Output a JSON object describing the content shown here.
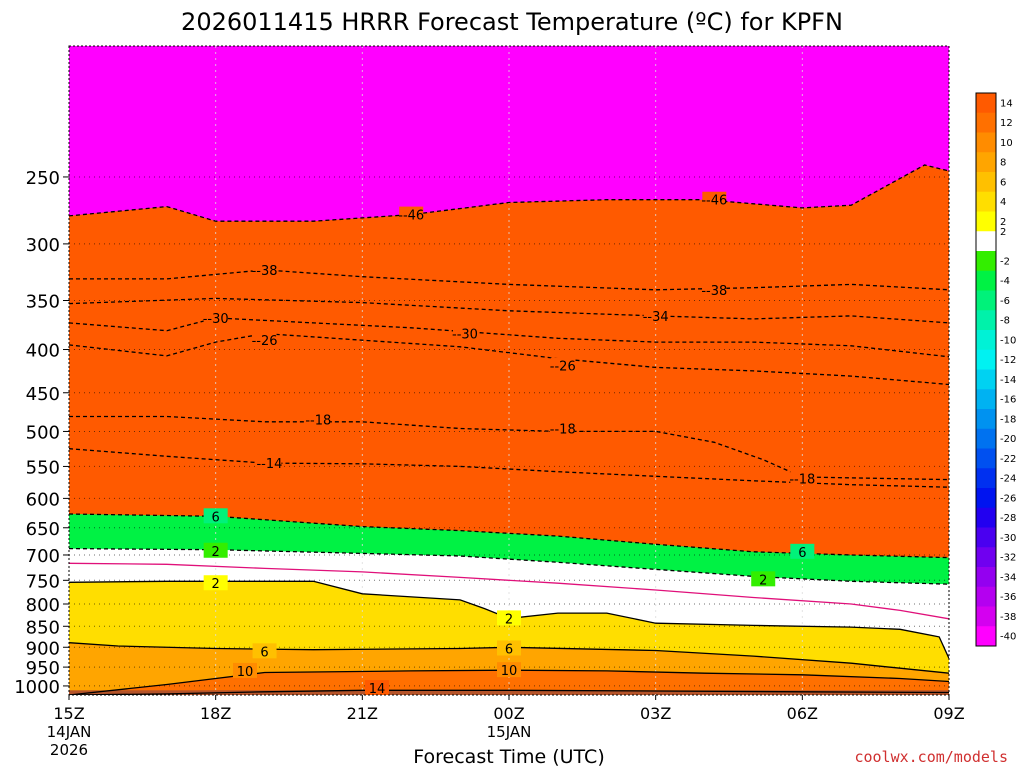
{
  "chart_data": {
    "type": "heatmap",
    "title": "2026011415 HRRR Forecast Temperature (ºC) for KPFN",
    "xlabel": "Forecast Time (UTC)",
    "ylabel": "",
    "credit": "coolwx.com/models",
    "x_range_hours": [
      0,
      18
    ],
    "y_range_hpa": [
      1025,
      175
    ],
    "y_scale": "log",
    "y_ticks": [
      1000,
      950,
      900,
      850,
      800,
      750,
      700,
      650,
      600,
      550,
      500,
      450,
      400,
      350,
      300,
      250
    ],
    "x_ticks": [
      {
        "hour": 0,
        "label": "15Z",
        "sub": "14JAN",
        "sub2": "2026"
      },
      {
        "hour": 3,
        "label": "18Z",
        "sub": "",
        "sub2": ""
      },
      {
        "hour": 6,
        "label": "21Z",
        "sub": "",
        "sub2": ""
      },
      {
        "hour": 9,
        "label": "00Z",
        "sub": "15JAN",
        "sub2": ""
      },
      {
        "hour": 12,
        "label": "03Z",
        "sub": "",
        "sub2": ""
      },
      {
        "hour": 15,
        "label": "06Z",
        "sub": "",
        "sub2": ""
      },
      {
        "hour": 18,
        "label": "09Z",
        "sub": "",
        "sub2": ""
      }
    ],
    "colorbar": [
      {
        "label": "14",
        "color": "#ff5a00"
      },
      {
        "label": "12",
        "color": "#ff7000"
      },
      {
        "label": "10",
        "color": "#ff8c00"
      },
      {
        "label": "8",
        "color": "#ffa500"
      },
      {
        "label": "6",
        "color": "#ffc000"
      },
      {
        "label": "4",
        "color": "#ffde00"
      },
      {
        "label": "2",
        "color": "#ffff00"
      },
      {
        "label": "",
        "color": "#ffffff"
      },
      {
        "label": "-2",
        "color": "#33ee00"
      },
      {
        "label": "-4",
        "color": "#00f244"
      },
      {
        "label": "-6",
        "color": "#00f27a"
      },
      {
        "label": "-8",
        "color": "#00f2aa"
      },
      {
        "label": "-10",
        "color": "#00f2d6"
      },
      {
        "label": "-12",
        "color": "#00f2f2"
      },
      {
        "label": "-14",
        "color": "#00d2f2"
      },
      {
        "label": "-16",
        "color": "#00b2f2"
      },
      {
        "label": "-18",
        "color": "#0092f0"
      },
      {
        "label": "-20",
        "color": "#0072f0"
      },
      {
        "label": "-22",
        "color": "#0050f0"
      },
      {
        "label": "-24",
        "color": "#0030f0"
      },
      {
        "label": "-26",
        "color": "#0014f0"
      },
      {
        "label": "-28",
        "color": "#2200f0"
      },
      {
        "label": "-30",
        "color": "#4a00f0"
      },
      {
        "label": "-32",
        "color": "#7000f0"
      },
      {
        "label": "-34",
        "color": "#9400f0"
      },
      {
        "label": "-36",
        "color": "#b400f0"
      },
      {
        "label": "-38",
        "color": "#d400f0"
      },
      {
        "label": "-40",
        "color": "#ff00ff"
      }
    ],
    "contours": [
      {
        "level": "14",
        "style": "solid",
        "color": "#000000",
        "points": [
          [
            0,
            1025
          ],
          [
            2,
            1022
          ],
          [
            4,
            1016
          ],
          [
            6,
            1012
          ],
          [
            9,
            1012
          ],
          [
            12,
            1014
          ],
          [
            15,
            1016
          ],
          [
            18,
            1018
          ]
        ],
        "labels": [
          [
            6.3,
            1006
          ]
        ]
      },
      {
        "level": "10",
        "style": "solid",
        "color": "#000000",
        "points": [
          [
            0,
            1025
          ],
          [
            2,
            996
          ],
          [
            3,
            980
          ],
          [
            4,
            964
          ],
          [
            7,
            960
          ],
          [
            9,
            958
          ],
          [
            11,
            960
          ],
          [
            13,
            966
          ],
          [
            15,
            970
          ],
          [
            17,
            980
          ],
          [
            18,
            988
          ]
        ],
        "labels": [
          [
            3.6,
            960
          ],
          [
            9,
            958
          ]
        ]
      },
      {
        "level": "6",
        "style": "solid",
        "color": "#000000",
        "points": [
          [
            0,
            889
          ],
          [
            1,
            897
          ],
          [
            3,
            903
          ],
          [
            5,
            906
          ],
          [
            8,
            903
          ],
          [
            9,
            900
          ],
          [
            12,
            908
          ],
          [
            14,
            922
          ],
          [
            16,
            940
          ],
          [
            18,
            966
          ]
        ],
        "labels": [
          [
            4,
            910
          ],
          [
            9,
            903
          ]
        ]
      },
      {
        "level": "2",
        "style": "solid",
        "color": "#000000",
        "points": [
          [
            0,
            754
          ],
          [
            2,
            752
          ],
          [
            5,
            752
          ],
          [
            6,
            778
          ],
          [
            8,
            791
          ],
          [
            8.5,
            810
          ],
          [
            9,
            832
          ],
          [
            10,
            820
          ],
          [
            11,
            820
          ],
          [
            12,
            843
          ],
          [
            14,
            848
          ],
          [
            16,
            852
          ],
          [
            17,
            857
          ],
          [
            17.8,
            875
          ],
          [
            18,
            928
          ]
        ],
        "labels": [
          [
            3,
            756
          ],
          [
            9,
            832
          ]
        ]
      },
      {
        "level": "0",
        "style": "solid",
        "color": "#e0107a",
        "points": [
          [
            0,
            716
          ],
          [
            2,
            718
          ],
          [
            4,
            726
          ],
          [
            6,
            733
          ],
          [
            8,
            744
          ],
          [
            10,
            756
          ],
          [
            12,
            770
          ],
          [
            14,
            786
          ],
          [
            16,
            800
          ],
          [
            17,
            814
          ],
          [
            18,
            833
          ]
        ],
        "labels": []
      },
      {
        "level": "2",
        "style": "dashed",
        "color": "#000000",
        "points": [
          [
            0,
            688
          ],
          [
            3,
            690
          ],
          [
            6,
            697
          ],
          [
            8,
            702
          ],
          [
            10,
            714
          ],
          [
            12,
            728
          ],
          [
            14,
            742
          ],
          [
            16,
            752
          ],
          [
            18,
            758
          ]
        ],
        "labels": [
          [
            3,
            692
          ],
          [
            14.2,
            748
          ]
        ]
      },
      {
        "level": "6",
        "style": "dashed",
        "color": "#000000",
        "points": [
          [
            0,
            626
          ],
          [
            3,
            630
          ],
          [
            6,
            648
          ],
          [
            8,
            655
          ],
          [
            10,
            665
          ],
          [
            12,
            680
          ],
          [
            14,
            694
          ],
          [
            16,
            700
          ],
          [
            18,
            705
          ]
        ],
        "labels": [
          [
            3,
            630
          ],
          [
            15,
            694
          ]
        ]
      },
      {
        "level": "-14",
        "style": "dashed",
        "color": "#000000",
        "points": [
          [
            0,
            524
          ],
          [
            2,
            535
          ],
          [
            4,
            545
          ],
          [
            6,
            546
          ],
          [
            8,
            550
          ],
          [
            10,
            558
          ],
          [
            12,
            565
          ],
          [
            14,
            572
          ],
          [
            16,
            578
          ],
          [
            18,
            582
          ]
        ],
        "labels": [
          [
            4.1,
            545
          ]
        ]
      },
      {
        "level": "-18",
        "style": "dashed",
        "color": "#000000",
        "points": [
          [
            0,
            480
          ],
          [
            2,
            480
          ],
          [
            4,
            487
          ],
          [
            6,
            487
          ],
          [
            8,
            496
          ],
          [
            10,
            500
          ],
          [
            12,
            500
          ],
          [
            13.2,
            515
          ],
          [
            14.2,
            540
          ],
          [
            15,
            566
          ],
          [
            18,
            570
          ]
        ],
        "labels": [
          [
            5.1,
            484
          ],
          [
            10.1,
            496
          ],
          [
            15,
            568
          ]
        ]
      },
      {
        "level": "-26",
        "style": "dashed",
        "color": "#000000",
        "points": [
          [
            0,
            395
          ],
          [
            2,
            407
          ],
          [
            3,
            392
          ],
          [
            4,
            383
          ],
          [
            6,
            390
          ],
          [
            8,
            397
          ],
          [
            10,
            410
          ],
          [
            12,
            420
          ],
          [
            14,
            424
          ],
          [
            16,
            430
          ],
          [
            18,
            440
          ]
        ],
        "labels": [
          [
            4,
            390
          ],
          [
            10.1,
            418
          ]
        ]
      },
      {
        "level": "-30",
        "style": "dashed",
        "color": "#000000",
        "points": [
          [
            0,
            372
          ],
          [
            2,
            380
          ],
          [
            3,
            367
          ],
          [
            5,
            372
          ],
          [
            7,
            377
          ],
          [
            10,
            388
          ],
          [
            12,
            392
          ],
          [
            14,
            392
          ],
          [
            16,
            396
          ],
          [
            18,
            408
          ]
        ],
        "labels": [
          [
            3,
            367
          ],
          [
            8.1,
            383
          ]
        ]
      },
      {
        "level": "-34",
        "style": "dashed",
        "color": "#000000",
        "points": [
          [
            0,
            353
          ],
          [
            3,
            348
          ],
          [
            6,
            352
          ],
          [
            9,
            360
          ],
          [
            12,
            365
          ],
          [
            14,
            368
          ],
          [
            16,
            365
          ],
          [
            18,
            372
          ]
        ],
        "labels": [
          [
            12,
            365
          ]
        ]
      },
      {
        "level": "-38",
        "style": "dashed",
        "color": "#000000",
        "points": [
          [
            0,
            330
          ],
          [
            2,
            330
          ],
          [
            4,
            322
          ],
          [
            6,
            328
          ],
          [
            9,
            335
          ],
          [
            12,
            340
          ],
          [
            14,
            338
          ],
          [
            16,
            335
          ],
          [
            18,
            340
          ]
        ],
        "labels": [
          [
            4,
            322
          ],
          [
            13.2,
            340
          ]
        ]
      },
      {
        "level": "-46",
        "style": "dashed",
        "color": "#000000",
        "points": [
          [
            0,
            278
          ],
          [
            2,
            271
          ],
          [
            3,
            282
          ],
          [
            5,
            282
          ],
          [
            7,
            277
          ],
          [
            9,
            268
          ],
          [
            11,
            266
          ],
          [
            13,
            266
          ],
          [
            15,
            272
          ],
          [
            16,
            270
          ],
          [
            17.5,
            242
          ],
          [
            18,
            246
          ]
        ],
        "labels": [
          [
            7,
            277
          ],
          [
            13.2,
            266
          ]
        ]
      }
    ]
  }
}
